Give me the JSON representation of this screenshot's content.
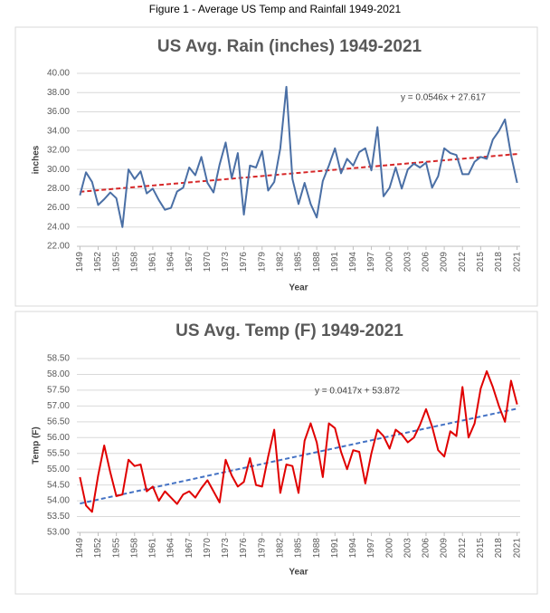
{
  "figure_title": "Figure 1 - Average US Temp and Rainfall 1949-2021",
  "chart_data": [
    {
      "type": "line",
      "title": "US Avg. Rain (inches) 1949-2021",
      "x_label": "Year",
      "y_label": "inches",
      "x": [
        1949,
        1950,
        1951,
        1952,
        1953,
        1954,
        1955,
        1956,
        1957,
        1958,
        1959,
        1960,
        1961,
        1962,
        1963,
        1964,
        1965,
        1966,
        1967,
        1968,
        1969,
        1970,
        1971,
        1972,
        1973,
        1974,
        1975,
        1976,
        1977,
        1978,
        1979,
        1980,
        1981,
        1982,
        1983,
        1984,
        1985,
        1986,
        1987,
        1988,
        1989,
        1990,
        1991,
        1992,
        1993,
        1994,
        1995,
        1996,
        1997,
        1998,
        1999,
        2000,
        2001,
        2002,
        2003,
        2004,
        2005,
        2006,
        2007,
        2008,
        2009,
        2010,
        2011,
        2012,
        2013,
        2014,
        2015,
        2016,
        2017,
        2018,
        2019,
        2020,
        2021
      ],
      "series": [
        {
          "name": "Rain",
          "color": "#4a6fa5",
          "values": [
            27.3,
            29.7,
            28.7,
            26.3,
            26.9,
            27.6,
            27.0,
            24.0,
            30.0,
            29.0,
            29.8,
            27.5,
            28.0,
            26.8,
            25.8,
            26.0,
            27.7,
            28.1,
            30.2,
            29.4,
            31.3,
            28.6,
            27.6,
            30.5,
            32.8,
            29.1,
            31.7,
            25.3,
            30.4,
            30.2,
            31.9,
            27.8,
            28.7,
            32.2,
            38.6,
            29.0,
            26.4,
            28.6,
            26.4,
            25.0,
            28.8,
            30.4,
            32.2,
            29.6,
            31.1,
            30.4,
            31.8,
            32.2,
            29.9,
            34.4,
            27.2,
            28.1,
            30.2,
            28.0,
            30.0,
            30.6,
            30.2,
            30.7,
            28.1,
            29.3,
            32.2,
            31.7,
            31.5,
            29.5,
            29.5,
            30.8,
            31.3,
            31.1,
            33.1,
            34.0,
            35.2,
            31.5,
            28.6
          ]
        }
      ],
      "trendline": {
        "label": "y = 0.0546x + 27.617",
        "slope": 0.0546,
        "intercept": 27.617,
        "color": "#d62728"
      },
      "xlim": [
        1948.5,
        2021.5
      ],
      "xticks": [
        1949,
        1952,
        1955,
        1958,
        1961,
        1964,
        1967,
        1970,
        1973,
        1976,
        1979,
        1982,
        1985,
        1988,
        1991,
        1994,
        1997,
        2000,
        2003,
        2006,
        2009,
        2012,
        2015,
        2018,
        2021
      ],
      "ylim": [
        22,
        40
      ],
      "yticks": [
        {
          "value": 22,
          "label": "22.00"
        },
        {
          "value": 24,
          "label": "24.00"
        },
        {
          "value": 26,
          "label": "26.00"
        },
        {
          "value": 28,
          "label": "28.00"
        },
        {
          "value": 30,
          "label": "30.00"
        },
        {
          "value": 32,
          "label": "32.00"
        },
        {
          "value": 34,
          "label": "34.00"
        },
        {
          "value": 36,
          "label": "36.00"
        },
        {
          "value": 38,
          "label": "38.00"
        },
        {
          "value": 40,
          "label": "40.00"
        }
      ],
      "grid": true
    },
    {
      "type": "line",
      "title": "US Avg. Temp (F) 1949-2021",
      "x_label": "Year",
      "y_label": "Temp (F)",
      "x": [
        1949,
        1950,
        1951,
        1952,
        1953,
        1954,
        1955,
        1956,
        1957,
        1958,
        1959,
        1960,
        1961,
        1962,
        1963,
        1964,
        1965,
        1966,
        1967,
        1968,
        1969,
        1970,
        1971,
        1972,
        1973,
        1974,
        1975,
        1976,
        1977,
        1978,
        1979,
        1980,
        1981,
        1982,
        1983,
        1984,
        1985,
        1986,
        1987,
        1988,
        1989,
        1990,
        1991,
        1992,
        1993,
        1994,
        1995,
        1996,
        1997,
        1998,
        1999,
        2000,
        2001,
        2002,
        2003,
        2004,
        2005,
        2006,
        2007,
        2008,
        2009,
        2010,
        2011,
        2012,
        2013,
        2014,
        2015,
        2016,
        2017,
        2018,
        2019,
        2020,
        2021
      ],
      "series": [
        {
          "name": "Temp",
          "color": "#e00000",
          "values": [
            54.75,
            53.85,
            53.65,
            54.8,
            55.75,
            54.9,
            54.15,
            54.2,
            55.3,
            55.1,
            55.15,
            54.3,
            54.45,
            54.0,
            54.3,
            54.1,
            53.9,
            54.2,
            54.3,
            54.1,
            54.4,
            54.65,
            54.3,
            53.95,
            55.3,
            54.8,
            54.45,
            54.6,
            55.35,
            54.5,
            54.45,
            55.4,
            56.25,
            54.25,
            55.15,
            55.1,
            54.25,
            55.9,
            56.45,
            55.85,
            54.75,
            56.45,
            56.3,
            55.55,
            55.0,
            55.6,
            55.55,
            54.55,
            55.5,
            56.25,
            56.05,
            55.65,
            56.25,
            56.1,
            55.85,
            56.0,
            56.4,
            56.9,
            56.35,
            55.6,
            55.4,
            56.2,
            56.05,
            57.6,
            56.0,
            56.45,
            57.55,
            58.1,
            57.6,
            57.0,
            56.5,
            57.8,
            57.05
          ]
        }
      ],
      "trendline": {
        "label": "y = 0.0417x + 53.872",
        "slope": 0.0417,
        "intercept": 53.872,
        "color": "#4472c4"
      },
      "xlim": [
        1948.5,
        2021.5
      ],
      "xticks": [
        1949,
        1952,
        1955,
        1958,
        1961,
        1964,
        1967,
        1970,
        1973,
        1976,
        1979,
        1982,
        1985,
        1988,
        1991,
        1994,
        1997,
        2000,
        2003,
        2006,
        2009,
        2012,
        2015,
        2018,
        2021
      ],
      "ylim": [
        53,
        58.5
      ],
      "yticks": [
        {
          "value": 53,
          "label": "53.00"
        },
        {
          "value": 53.5,
          "label": "53.50"
        },
        {
          "value": 54,
          "label": "54.00"
        },
        {
          "value": 54.5,
          "label": "54.50"
        },
        {
          "value": 55,
          "label": "55.00"
        },
        {
          "value": 55.5,
          "label": "55.50"
        },
        {
          "value": 56,
          "label": "56.00"
        },
        {
          "value": 56.5,
          "label": "56.50"
        },
        {
          "value": 57,
          "label": "57.00"
        },
        {
          "value": 57.5,
          "label": "57.50"
        },
        {
          "value": 58,
          "label": "58.00"
        },
        {
          "value": 58.5,
          "label": "58.50"
        }
      ],
      "grid": true
    }
  ]
}
